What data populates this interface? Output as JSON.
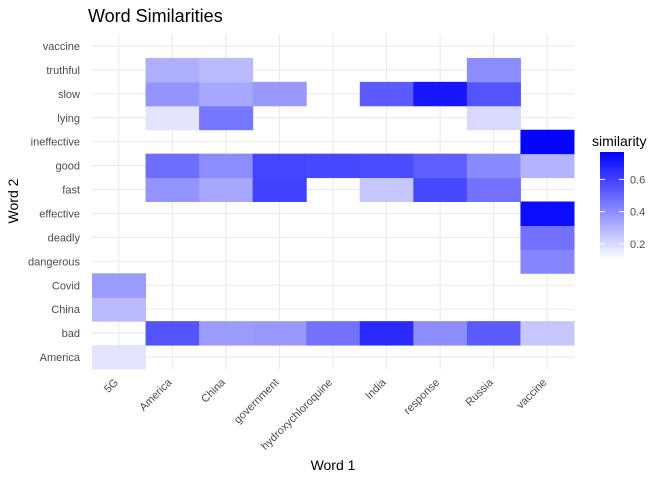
{
  "chart_data": {
    "type": "heatmap",
    "title": "Word Similarities",
    "xlabel": "Word 1",
    "ylabel": "Word 2",
    "x_categories": [
      "5G",
      "America",
      "China",
      "government",
      "hydroxychloroquine",
      "India",
      "response",
      "Russia",
      "vaccine"
    ],
    "y_categories": [
      "America",
      "bad",
      "China",
      "Covid",
      "dangerous",
      "deadly",
      "effective",
      "fast",
      "good",
      "ineffective",
      "lying",
      "slow",
      "truthful",
      "vaccine"
    ],
    "cells": [
      {
        "x": "5G",
        "y": "America",
        "value": 0.17
      },
      {
        "x": "5G",
        "y": "China",
        "value": 0.28
      },
      {
        "x": "5G",
        "y": "Covid",
        "value": 0.36
      },
      {
        "x": "America",
        "y": "bad",
        "value": 0.55
      },
      {
        "x": "China",
        "y": "bad",
        "value": 0.36
      },
      {
        "x": "government",
        "y": "bad",
        "value": 0.37
      },
      {
        "x": "hydroxychloroquine",
        "y": "bad",
        "value": 0.47
      },
      {
        "x": "India",
        "y": "bad",
        "value": 0.66
      },
      {
        "x": "response",
        "y": "bad",
        "value": 0.4
      },
      {
        "x": "Russia",
        "y": "bad",
        "value": 0.53
      },
      {
        "x": "vaccine",
        "y": "bad",
        "value": 0.25
      },
      {
        "x": "vaccine",
        "y": "dangerous",
        "value": 0.42
      },
      {
        "x": "vaccine",
        "y": "deadly",
        "value": 0.47
      },
      {
        "x": "vaccine",
        "y": "effective",
        "value": 0.74
      },
      {
        "x": "America",
        "y": "fast",
        "value": 0.38
      },
      {
        "x": "China",
        "y": "fast",
        "value": 0.33
      },
      {
        "x": "government",
        "y": "fast",
        "value": 0.6
      },
      {
        "x": "India",
        "y": "fast",
        "value": 0.25
      },
      {
        "x": "response",
        "y": "fast",
        "value": 0.58
      },
      {
        "x": "Russia",
        "y": "fast",
        "value": 0.47
      },
      {
        "x": "America",
        "y": "good",
        "value": 0.48
      },
      {
        "x": "China",
        "y": "good",
        "value": 0.4
      },
      {
        "x": "government",
        "y": "good",
        "value": 0.59
      },
      {
        "x": "hydroxychloroquine",
        "y": "good",
        "value": 0.58
      },
      {
        "x": "India",
        "y": "good",
        "value": 0.57
      },
      {
        "x": "response",
        "y": "good",
        "value": 0.52
      },
      {
        "x": "Russia",
        "y": "good",
        "value": 0.41
      },
      {
        "x": "vaccine",
        "y": "good",
        "value": 0.3
      },
      {
        "x": "vaccine",
        "y": "ineffective",
        "value": 0.76
      },
      {
        "x": "America",
        "y": "lying",
        "value": 0.17
      },
      {
        "x": "China",
        "y": "lying",
        "value": 0.46
      },
      {
        "x": "Russia",
        "y": "lying",
        "value": 0.2
      },
      {
        "x": "America",
        "y": "slow",
        "value": 0.38
      },
      {
        "x": "China",
        "y": "slow",
        "value": 0.33
      },
      {
        "x": "government",
        "y": "slow",
        "value": 0.37
      },
      {
        "x": "India",
        "y": "slow",
        "value": 0.53
      },
      {
        "x": "response",
        "y": "slow",
        "value": 0.71
      },
      {
        "x": "Russia",
        "y": "slow",
        "value": 0.55
      },
      {
        "x": "America",
        "y": "truthful",
        "value": 0.31
      },
      {
        "x": "China",
        "y": "truthful",
        "value": 0.28
      },
      {
        "x": "Russia",
        "y": "truthful",
        "value": 0.4
      }
    ],
    "legend": {
      "title": "similarity",
      "ticks": [
        0.2,
        0.4,
        0.6
      ],
      "range": [
        0.1,
        0.77
      ],
      "low_color": "#ffffff",
      "high_color": "#0000ff",
      "placement": "right"
    },
    "grid": true,
    "theme": "minimal"
  }
}
